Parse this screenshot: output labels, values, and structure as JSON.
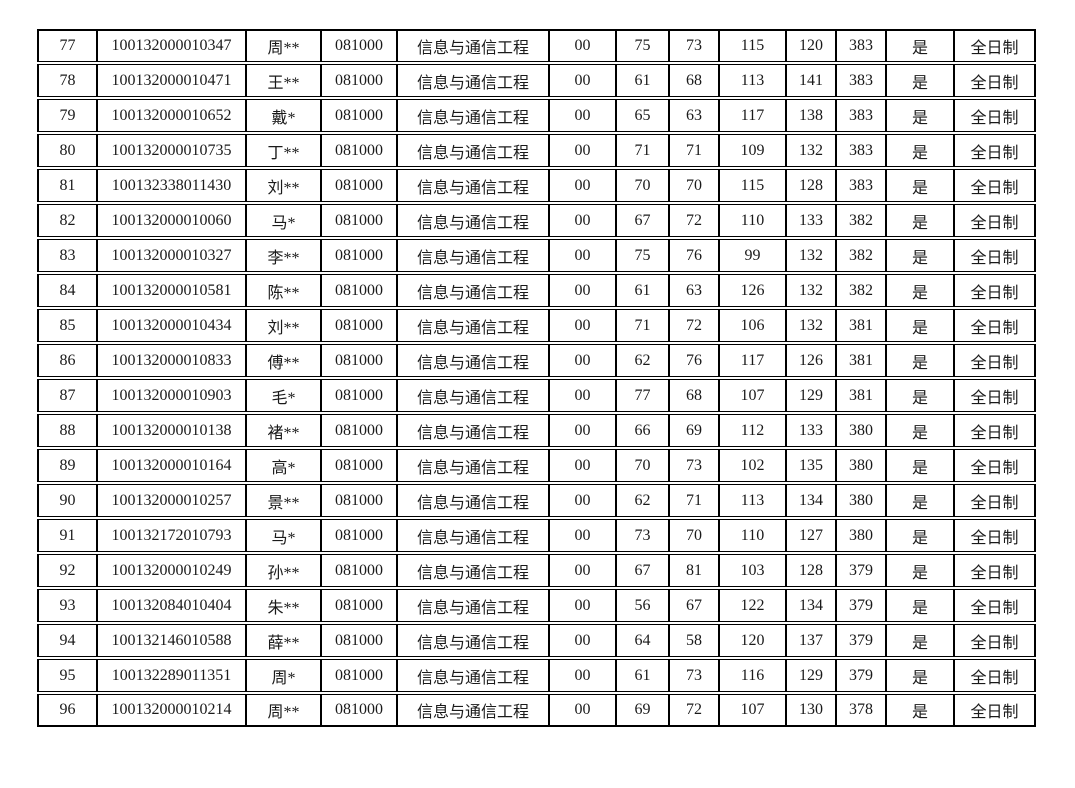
{
  "page": {
    "background_color": "#ffffff",
    "border_color": "#000000",
    "text_color": "#1a1a1a"
  },
  "table": {
    "rows": [
      [
        "77",
        "100132000010347",
        "周**",
        "081000",
        "信息与通信工程",
        "00",
        "75",
        "73",
        "115",
        "120",
        "383",
        "是",
        "全日制"
      ],
      [
        "78",
        "100132000010471",
        "王**",
        "081000",
        "信息与通信工程",
        "00",
        "61",
        "68",
        "113",
        "141",
        "383",
        "是",
        "全日制"
      ],
      [
        "79",
        "100132000010652",
        "戴*",
        "081000",
        "信息与通信工程",
        "00",
        "65",
        "63",
        "117",
        "138",
        "383",
        "是",
        "全日制"
      ],
      [
        "80",
        "100132000010735",
        "丁**",
        "081000",
        "信息与通信工程",
        "00",
        "71",
        "71",
        "109",
        "132",
        "383",
        "是",
        "全日制"
      ],
      [
        "81",
        "100132338011430",
        "刘**",
        "081000",
        "信息与通信工程",
        "00",
        "70",
        "70",
        "115",
        "128",
        "383",
        "是",
        "全日制"
      ],
      [
        "82",
        "100132000010060",
        "马*",
        "081000",
        "信息与通信工程",
        "00",
        "67",
        "72",
        "110",
        "133",
        "382",
        "是",
        "全日制"
      ],
      [
        "83",
        "100132000010327",
        "李**",
        "081000",
        "信息与通信工程",
        "00",
        "75",
        "76",
        "99",
        "132",
        "382",
        "是",
        "全日制"
      ],
      [
        "84",
        "100132000010581",
        "陈**",
        "081000",
        "信息与通信工程",
        "00",
        "61",
        "63",
        "126",
        "132",
        "382",
        "是",
        "全日制"
      ],
      [
        "85",
        "100132000010434",
        "刘**",
        "081000",
        "信息与通信工程",
        "00",
        "71",
        "72",
        "106",
        "132",
        "381",
        "是",
        "全日制"
      ],
      [
        "86",
        "100132000010833",
        "傅**",
        "081000",
        "信息与通信工程",
        "00",
        "62",
        "76",
        "117",
        "126",
        "381",
        "是",
        "全日制"
      ],
      [
        "87",
        "100132000010903",
        "毛*",
        "081000",
        "信息与通信工程",
        "00",
        "77",
        "68",
        "107",
        "129",
        "381",
        "是",
        "全日制"
      ],
      [
        "88",
        "100132000010138",
        "褚**",
        "081000",
        "信息与通信工程",
        "00",
        "66",
        "69",
        "112",
        "133",
        "380",
        "是",
        "全日制"
      ],
      [
        "89",
        "100132000010164",
        "高*",
        "081000",
        "信息与通信工程",
        "00",
        "70",
        "73",
        "102",
        "135",
        "380",
        "是",
        "全日制"
      ],
      [
        "90",
        "100132000010257",
        "景**",
        "081000",
        "信息与通信工程",
        "00",
        "62",
        "71",
        "113",
        "134",
        "380",
        "是",
        "全日制"
      ],
      [
        "91",
        "100132172010793",
        "马*",
        "081000",
        "信息与通信工程",
        "00",
        "73",
        "70",
        "110",
        "127",
        "380",
        "是",
        "全日制"
      ],
      [
        "92",
        "100132000010249",
        "孙**",
        "081000",
        "信息与通信工程",
        "00",
        "67",
        "81",
        "103",
        "128",
        "379",
        "是",
        "全日制"
      ],
      [
        "93",
        "100132084010404",
        "朱**",
        "081000",
        "信息与通信工程",
        "00",
        "56",
        "67",
        "122",
        "134",
        "379",
        "是",
        "全日制"
      ],
      [
        "94",
        "100132146010588",
        "薛**",
        "081000",
        "信息与通信工程",
        "00",
        "64",
        "58",
        "120",
        "137",
        "379",
        "是",
        "全日制"
      ],
      [
        "95",
        "100132289011351",
        "周*",
        "081000",
        "信息与通信工程",
        "00",
        "61",
        "73",
        "116",
        "129",
        "379",
        "是",
        "全日制"
      ],
      [
        "96",
        "100132000010214",
        "周**",
        "081000",
        "信息与通信工程",
        "00",
        "69",
        "72",
        "107",
        "130",
        "378",
        "是",
        "全日制"
      ]
    ]
  }
}
